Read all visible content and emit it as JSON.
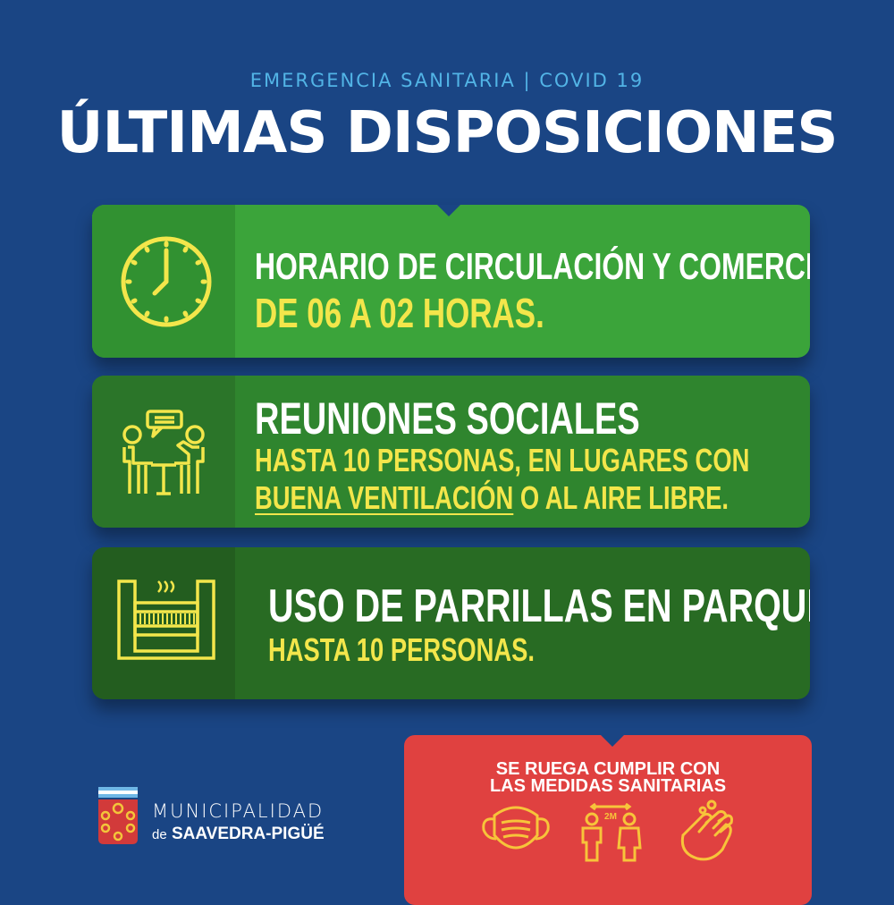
{
  "header": {
    "subtitle": "EMERGENCIA SANITARIA | COVID 19",
    "title": "ÚLTIMAS DISPOSICIONES"
  },
  "cards": [
    {
      "icon": "clock-icon",
      "line1": "HORARIO DE CIRCULACIÓN Y COMERCIAL",
      "line2": "DE 06 A 02 HORAS."
    },
    {
      "icon": "meeting-icon",
      "line1": "REUNIONES SOCIALES",
      "line2": "HASTA 10 PERSONAS, EN LUGARES CON",
      "line3_underlined": "BUENA VENTILACIÓN",
      "line3_rest": " O AL AIRE LIBRE."
    },
    {
      "icon": "grill-icon",
      "line1": "USO DE PARRILLAS EN PARQUES",
      "line2": "HASTA 10 PERSONAS."
    }
  ],
  "notice": {
    "line1": "SE RUEGA CUMPLIR CON",
    "line2": "LAS MEDIDAS SANITARIAS",
    "distance_label": "2M",
    "icons": [
      "mask-icon",
      "distance-icon",
      "handwash-icon"
    ]
  },
  "logo": {
    "line1": "MUNICIPALIDAD",
    "prefix": "de",
    "name": "SAAVEDRA-PIGÜÉ"
  },
  "colors": {
    "background": "#1a4584",
    "accent_yellow": "#f3e64b",
    "title_blue": "#52b4e6",
    "notice_red": "#e04140",
    "green": "#3ba43a"
  }
}
